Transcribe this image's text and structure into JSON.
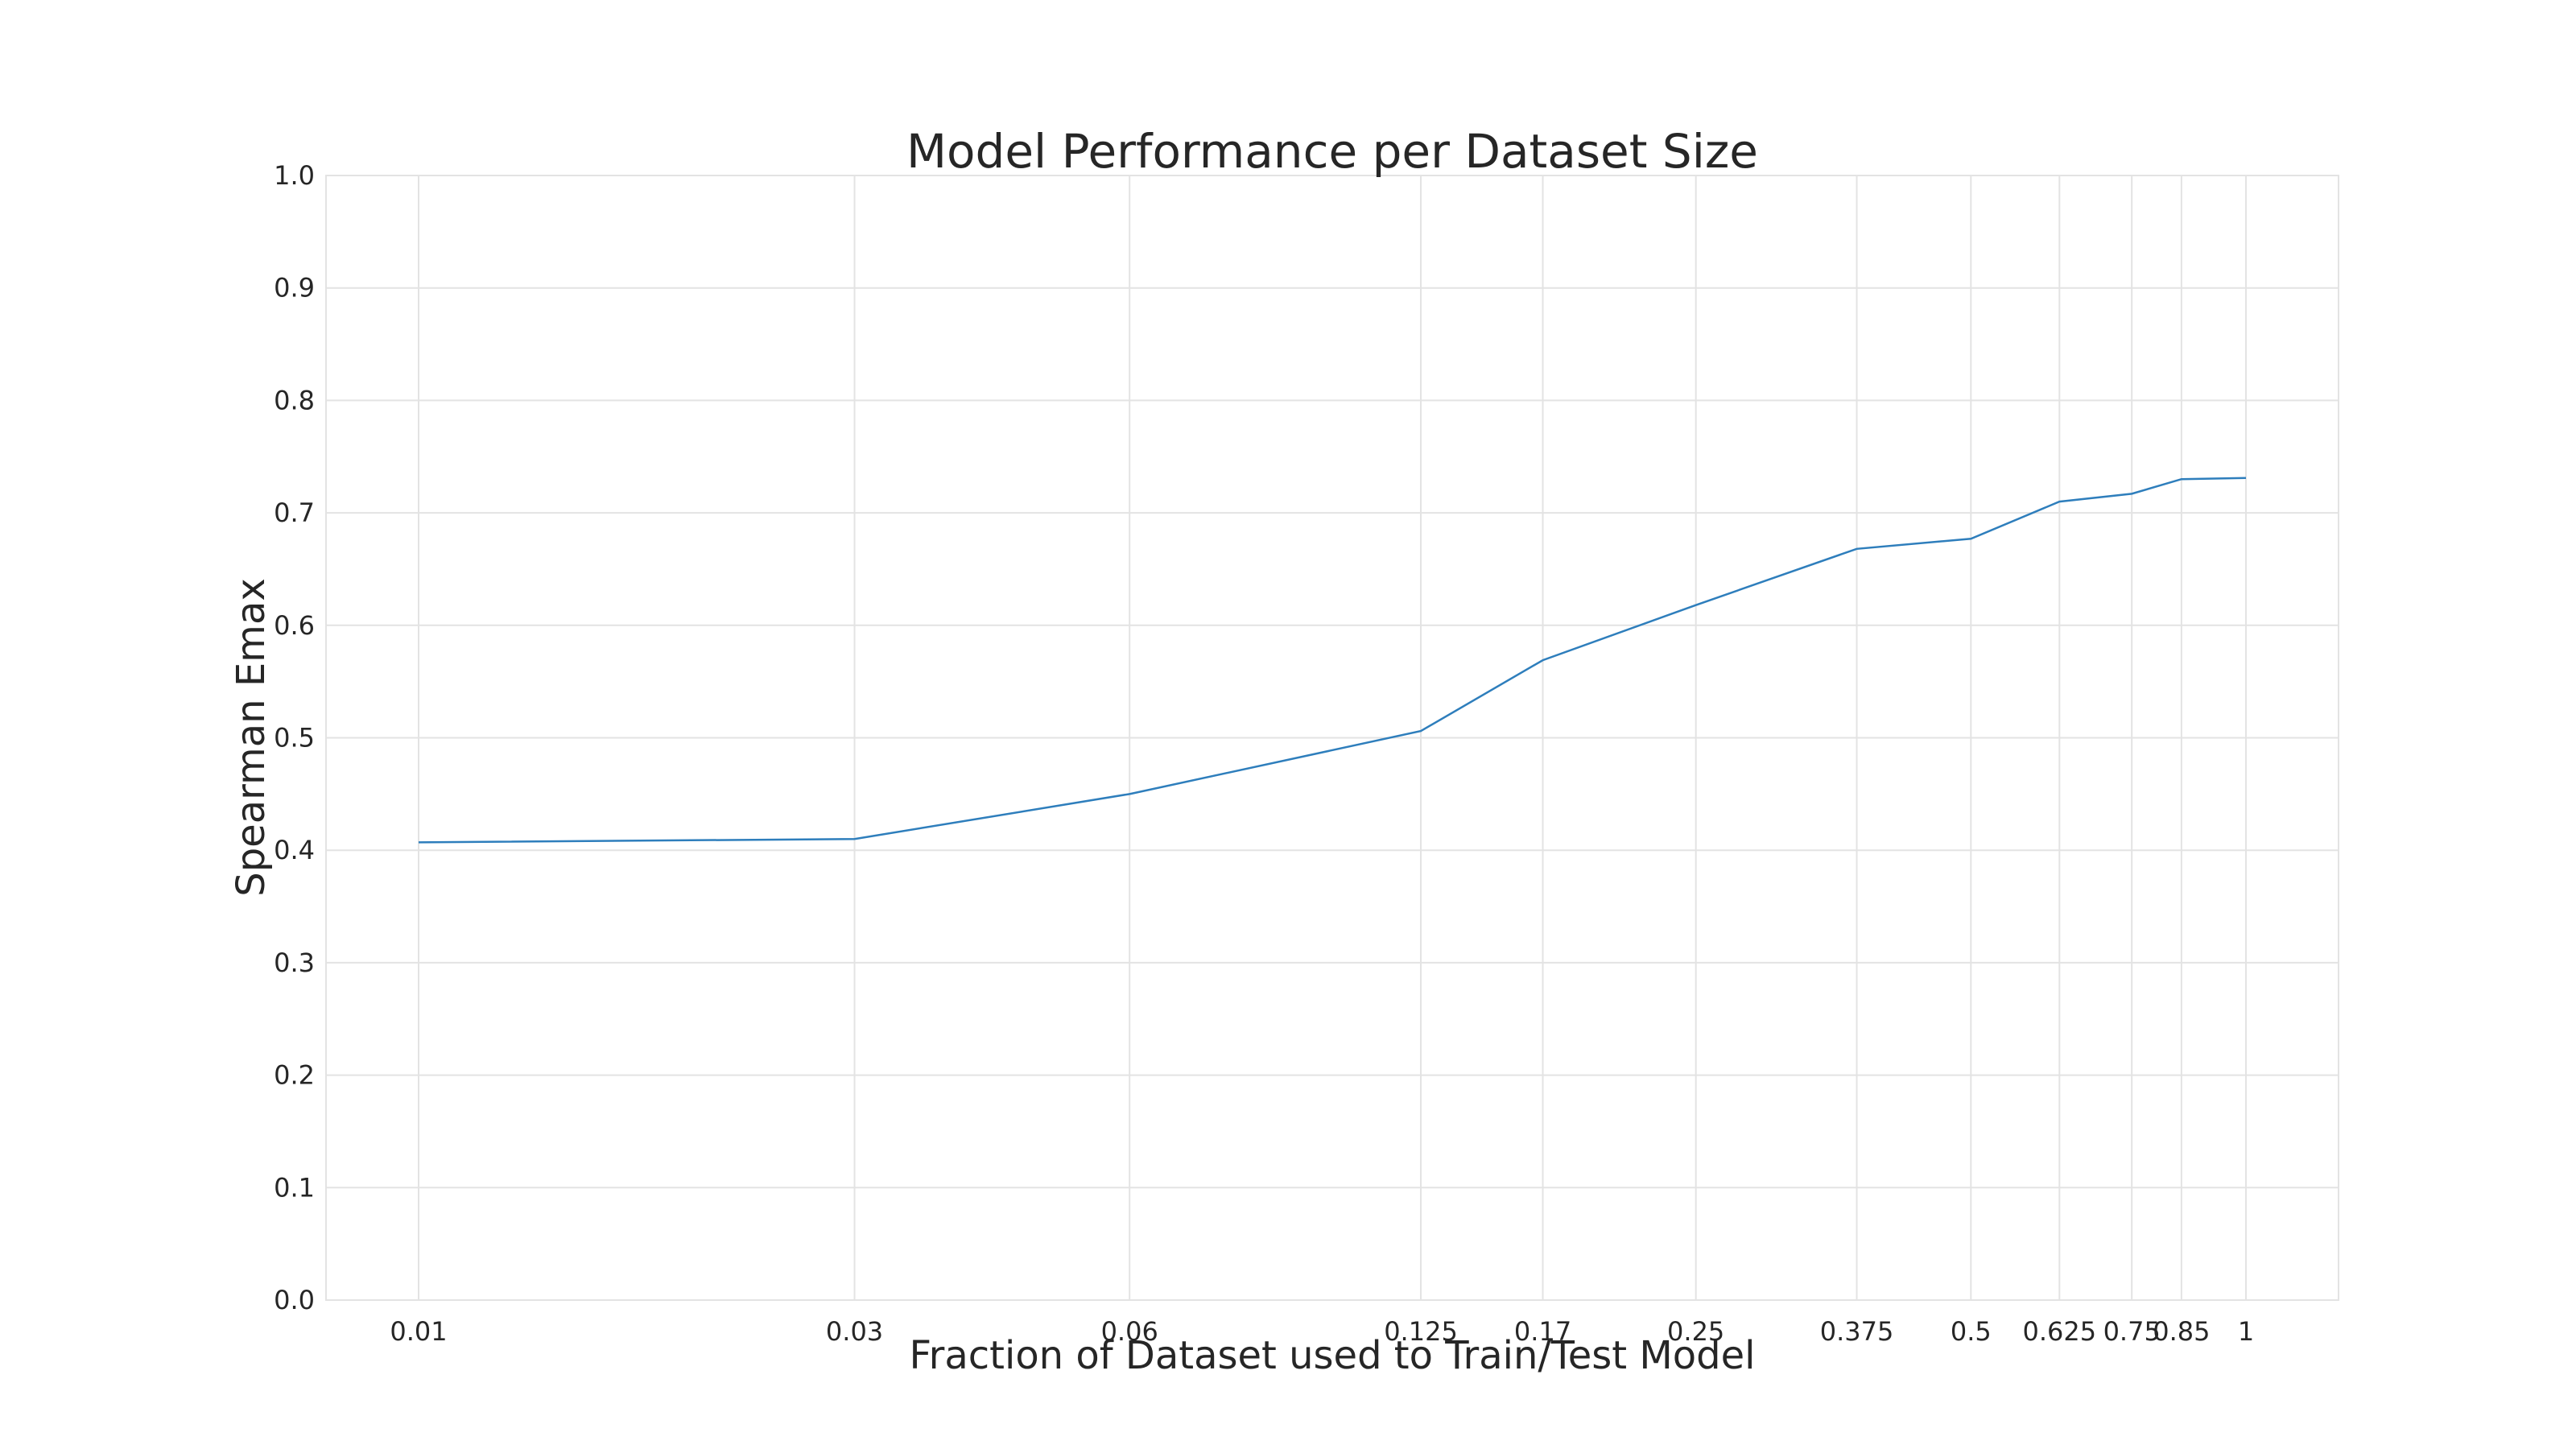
{
  "chart_data": {
    "type": "line",
    "title": "Model Performance per Dataset Size",
    "xlabel": "Fraction of Dataset used to Train/Test Model",
    "ylabel": "Spearman Emax",
    "x_scale": "log",
    "x": [
      0.01,
      0.03,
      0.06,
      0.125,
      0.17,
      0.25,
      0.375,
      0.5,
      0.625,
      0.75,
      0.85,
      1
    ],
    "x_tick_labels": [
      "0.01",
      "0.03",
      "0.06",
      "0.125",
      "0.17",
      "0.25",
      "0.375",
      "0.5",
      "0.625",
      "0.75",
      "0.85",
      "1"
    ],
    "series": [
      {
        "values": [
          0.407,
          0.41,
          0.45,
          0.506,
          0.569,
          0.618,
          0.668,
          0.677,
          0.71,
          0.717,
          0.73,
          0.731
        ],
        "color": "#2e7ebc"
      }
    ],
    "ylim": [
      0.0,
      1.0
    ],
    "y_ticks": [
      "0.0",
      "0.1",
      "0.2",
      "0.3",
      "0.4",
      "0.5",
      "0.6",
      "0.7",
      "0.8",
      "0.9",
      "1.0"
    ],
    "grid": true,
    "legend": "none"
  }
}
